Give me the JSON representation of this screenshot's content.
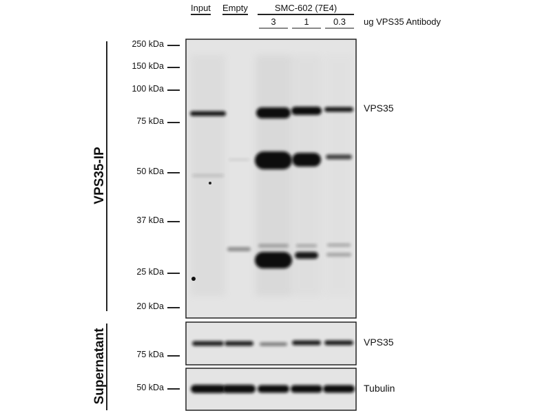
{
  "header": {
    "lanes": [
      "Input",
      "Empty",
      "SMC-602 (7E4)"
    ],
    "amounts": [
      "3",
      "1",
      "0.3"
    ],
    "amount_label": "ug VPS35 Antibody"
  },
  "panels": {
    "ip": {
      "label": "VPS35-IP",
      "band_label": "VPS35",
      "markers": [
        "250 kDa",
        "150 kDa",
        "100 kDa",
        "75 kDa",
        "50 kDa",
        "37 kDa",
        "25 kDa",
        "20 kDa"
      ]
    },
    "supernatant": {
      "label": "Supernatant",
      "vps35": {
        "band_label": "VPS35",
        "marker": "75 kDa"
      },
      "tubulin": {
        "band_label": "Tubulin",
        "marker": "50 kDa"
      }
    }
  },
  "colors": {
    "membrane": "#e4e4e4",
    "band": "#0a0a0a"
  }
}
